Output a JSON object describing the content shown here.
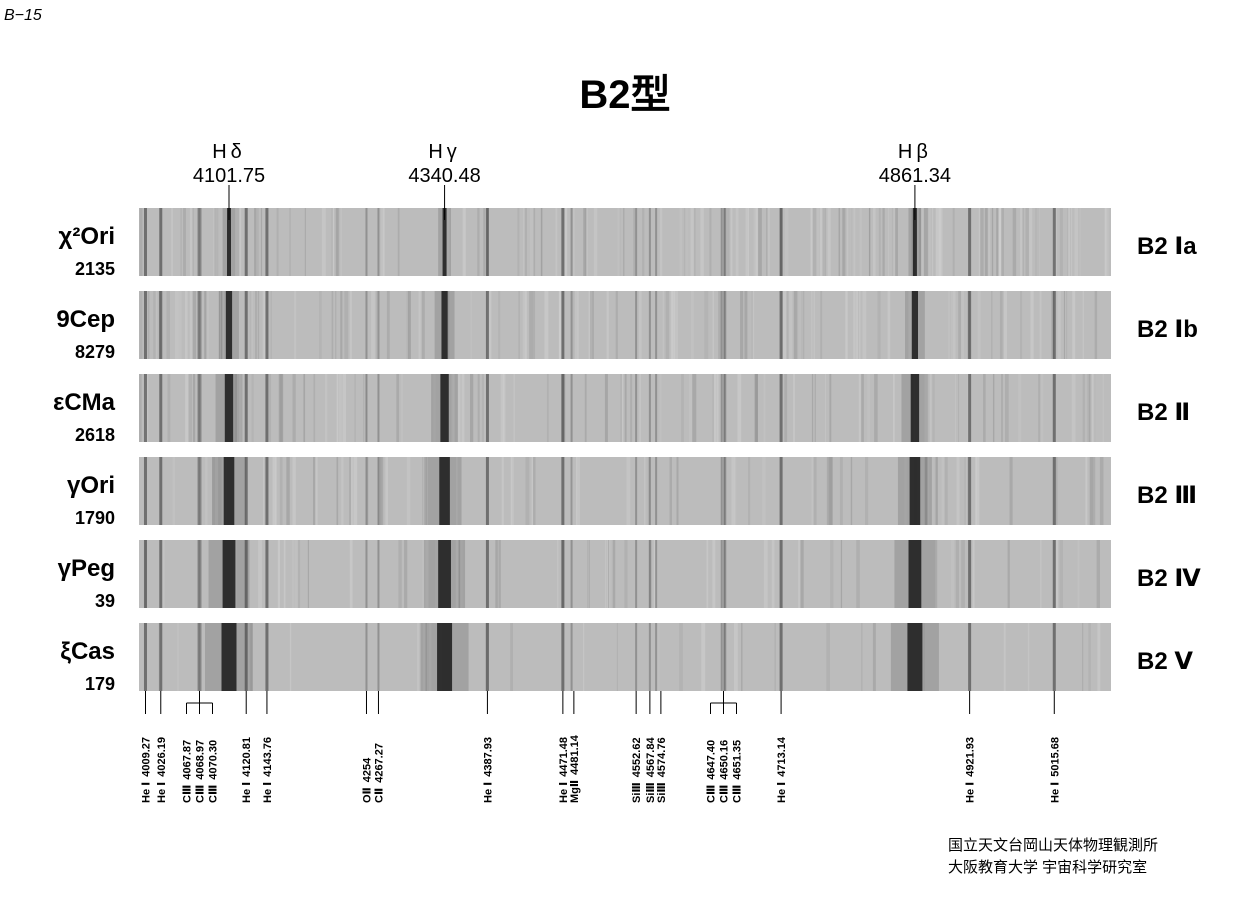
{
  "page_id": "B−15",
  "title": "B2型",
  "balmer_lines": [
    {
      "name": "Hδ",
      "wavelength": "4101.75"
    },
    {
      "name": "Hγ",
      "wavelength": "4340.48"
    },
    {
      "name": "Hβ",
      "wavelength": "4861.34"
    }
  ],
  "stars": [
    {
      "name": "χ²Ori",
      "hd": "2135",
      "class": "B2 Ⅰa"
    },
    {
      "name": "9Cep",
      "hd": "8279",
      "class": "B2 Ⅰb"
    },
    {
      "name": "εCMa",
      "hd": "2618",
      "class": "B2 Ⅱ"
    },
    {
      "name": "γOri",
      "hd": "1790",
      "class": "B2 Ⅲ"
    },
    {
      "name": "γPeg",
      "hd": "39",
      "class": "B2 Ⅳ"
    },
    {
      "name": "ξCas",
      "hd": "179",
      "class": "B2 Ⅴ"
    }
  ],
  "lines": [
    {
      "ion": "He Ⅰ",
      "wavelength": "4009.27"
    },
    {
      "ion": "He Ⅰ",
      "wavelength": "4026.19"
    },
    {
      "ion": "CⅢ",
      "wavelength": "4067.87"
    },
    {
      "ion": "CⅢ",
      "wavelength": "4068.97"
    },
    {
      "ion": "CⅢ",
      "wavelength": "4070.30"
    },
    {
      "ion": "He Ⅰ",
      "wavelength": "4120.81"
    },
    {
      "ion": "He Ⅰ",
      "wavelength": "4143.76"
    },
    {
      "ion": "OⅡ",
      "wavelength": "4254"
    },
    {
      "ion": "CⅡ",
      "wavelength": "4267.27"
    },
    {
      "ion": "He Ⅰ",
      "wavelength": "4387.93"
    },
    {
      "ion": "He Ⅰ",
      "wavelength": "4471.48"
    },
    {
      "ion": "MgⅡ",
      "wavelength": "4481.14"
    },
    {
      "ion": "SiⅢ",
      "wavelength": "4552.62"
    },
    {
      "ion": "SiⅢ",
      "wavelength": "4567.84"
    },
    {
      "ion": "SiⅢ",
      "wavelength": "4574.76"
    },
    {
      "ion": "CⅢ",
      "wavelength": "4647.40"
    },
    {
      "ion": "CⅢ",
      "wavelength": "4650.16"
    },
    {
      "ion": "CⅢ",
      "wavelength": "4651.35"
    },
    {
      "ion": "He Ⅰ",
      "wavelength": "4713.14"
    },
    {
      "ion": "He Ⅰ",
      "wavelength": "4921.93"
    },
    {
      "ion": "He Ⅰ",
      "wavelength": "5015.68"
    }
  ],
  "credits": [
    "国立天文台岡山天体物理観測所",
    "大阪教育大学 宇宙科学研究室"
  ]
}
